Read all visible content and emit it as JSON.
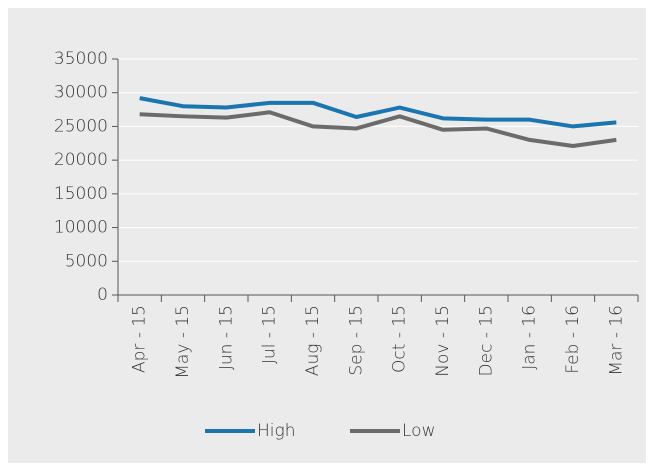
{
  "chart_data": {
    "type": "line",
    "categories": [
      "Apr - 15",
      "May - 15",
      "Jun - 15",
      "Jul - 15",
      "Aug - 15",
      "Sep - 15",
      "Oct - 15",
      "Nov - 15",
      "Dec - 15",
      "Jan - 16",
      "Feb - 16",
      "Mar - 16"
    ],
    "series": [
      {
        "name": "High",
        "color": "#1a75b0",
        "values": [
          29200,
          28000,
          27800,
          28500,
          28500,
          26400,
          27800,
          26200,
          26000,
          26000,
          25000,
          25600
        ]
      },
      {
        "name": "Low",
        "color": "#6b6b6b",
        "values": [
          26800,
          26500,
          26300,
          27100,
          25000,
          24700,
          26500,
          24500,
          24700,
          23000,
          22100,
          23000
        ]
      }
    ],
    "ylim": [
      0,
      35000
    ],
    "yticks": [
      0,
      5000,
      10000,
      15000,
      20000,
      25000,
      30000,
      35000
    ],
    "grid": true,
    "legend": "bottom"
  }
}
